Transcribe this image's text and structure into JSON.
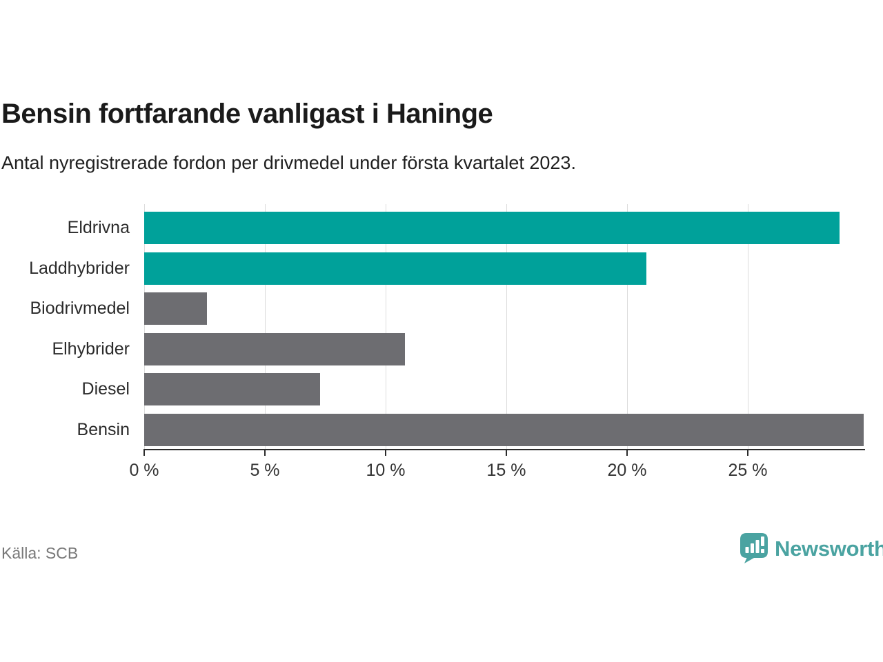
{
  "header": {
    "title": "Bensin fortfarande vanligast i Haninge",
    "subtitle": "Antal nyregistrerade fordon per drivmedel under första kvartalet 2023."
  },
  "chart_data": {
    "type": "bar",
    "orientation": "horizontal",
    "title": "Bensin fortfarande vanligast i Haninge",
    "subtitle": "Antal nyregistrerade fordon per drivmedel under första kvartalet 2023.",
    "categories": [
      "Eldrivna",
      "Laddhybrider",
      "Biodrivmedel",
      "Elhybrider",
      "Diesel",
      "Bensin"
    ],
    "values": [
      28.8,
      20.8,
      2.6,
      10.8,
      7.3,
      29.8
    ],
    "unit": "%",
    "bar_colors": [
      "#00a19a",
      "#00a19a",
      "#6d6d71",
      "#6d6d71",
      "#6d6d71",
      "#6d6d71"
    ],
    "highlight_color": "#00a19a",
    "default_color": "#6d6d71",
    "xlabel": "",
    "ylabel": "",
    "xlim": [
      0,
      29.8
    ],
    "x_ticks": [
      0,
      5,
      10,
      15,
      20,
      25
    ],
    "x_tick_labels": [
      "0 %",
      "5 %",
      "10 %",
      "15 %",
      "20 %",
      "25 %"
    ],
    "grid": true,
    "gridline_color": "#dcdcdc",
    "axis_color": "#2b2b2b",
    "legend": "none"
  },
  "footer": {
    "source": "Källa: SCB",
    "brand": "Newsworthy",
    "logo_color": "#4aa3a1"
  }
}
